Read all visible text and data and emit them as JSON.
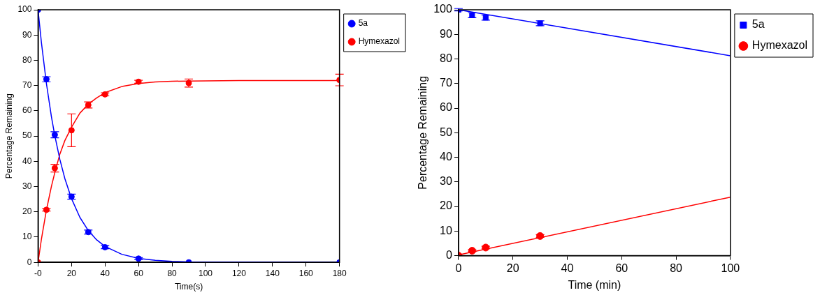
{
  "chart_data": [
    {
      "type": "scatter",
      "xlabel": "Time(s)",
      "ylabel": "Percentage Remaining",
      "xlim": [
        0,
        180
      ],
      "ylim": [
        0,
        100
      ],
      "xticks": [
        {
          "value": 0,
          "label": "-0"
        },
        20,
        40,
        60,
        80,
        100,
        120,
        140,
        160,
        180
      ],
      "yticks": [
        0,
        10,
        20,
        30,
        40,
        50,
        60,
        70,
        80,
        90,
        100
      ],
      "legend": "right",
      "grid": false,
      "marker": "circle",
      "series": [
        {
          "name": "5a",
          "color": "#0000ff",
          "x": [
            0,
            5,
            10,
            20,
            30,
            40,
            60,
            90,
            180
          ],
          "values": [
            100,
            72.5,
            50.5,
            26,
            12,
            6,
            1.5,
            0,
            0
          ],
          "errors": [
            null,
            1,
            1.2,
            1,
            0.8,
            0.6,
            0.4,
            null,
            null
          ]
        },
        {
          "name": "Hymexazol",
          "color": "#ff0000",
          "x": [
            0,
            5,
            10,
            20,
            30,
            40,
            60,
            90,
            180
          ],
          "values": [
            0,
            20.8,
            37.3,
            52.3,
            62.3,
            66.5,
            71.5,
            71,
            72.2
          ],
          "errors": [
            null,
            0.5,
            1.5,
            6.5,
            1.2,
            0.6,
            0.6,
            1.6,
            2.3
          ]
        },
        {
          "type": "line",
          "color": "#0000ff",
          "marker": "none",
          "x": [
            0,
            2,
            5,
            8,
            10,
            13,
            16,
            20,
            25,
            30,
            35,
            40,
            50,
            60,
            70,
            80,
            90,
            180
          ],
          "values": [
            100,
            87.1,
            70.8,
            57.6,
            50.2,
            40.8,
            33.2,
            25.2,
            17.8,
            12.6,
            8.9,
            6.3,
            3.2,
            1.6,
            0.8,
            0.4,
            0.2,
            0
          ]
        },
        {
          "type": "line",
          "color": "#ff0000",
          "marker": "none",
          "x": [
            0,
            2,
            5,
            8,
            10,
            13,
            16,
            20,
            25,
            30,
            35,
            40,
            50,
            60,
            70,
            80,
            90,
            120,
            150,
            180
          ],
          "values": [
            0,
            9.1,
            20.7,
            30.1,
            35.5,
            42.8,
            48.2,
            53.5,
            59.1,
            62.6,
            65.1,
            67.2,
            69.6,
            70.8,
            71.4,
            71.7,
            71.8,
            72,
            72,
            72
          ]
        }
      ]
    },
    {
      "type": "scatter",
      "xlabel": "Time (min)",
      "ylabel": "Percentage Remaining",
      "xlim": [
        0,
        100
      ],
      "ylim": [
        0,
        100
      ],
      "xticks": [
        0,
        20,
        40,
        60,
        80,
        100
      ],
      "yticks": [
        0,
        10,
        20,
        30,
        40,
        50,
        60,
        70,
        80,
        90,
        100
      ],
      "legend": "right",
      "grid": false,
      "series": [
        {
          "name": "5a",
          "color": "#0000ff",
          "marker": "square",
          "x": [
            0,
            5,
            10,
            30
          ],
          "values": [
            100,
            97.8,
            96.8,
            94.5
          ],
          "errors": [
            0.5,
            1,
            1,
            1
          ]
        },
        {
          "name": "Hymexazol",
          "color": "#ff0000",
          "marker": "circle",
          "x": [
            0,
            5,
            10,
            30
          ],
          "values": [
            0,
            2,
            3.3,
            8
          ],
          "errors": [
            null,
            0.4,
            0.5,
            0.6
          ]
        },
        {
          "type": "line",
          "color": "#0000ff",
          "marker": "none",
          "x": [
            0,
            100
          ],
          "values": [
            100,
            81.3
          ]
        },
        {
          "type": "line",
          "color": "#ff0000",
          "marker": "none",
          "x": [
            0,
            100
          ],
          "values": [
            0.3,
            23.8
          ]
        }
      ]
    }
  ]
}
